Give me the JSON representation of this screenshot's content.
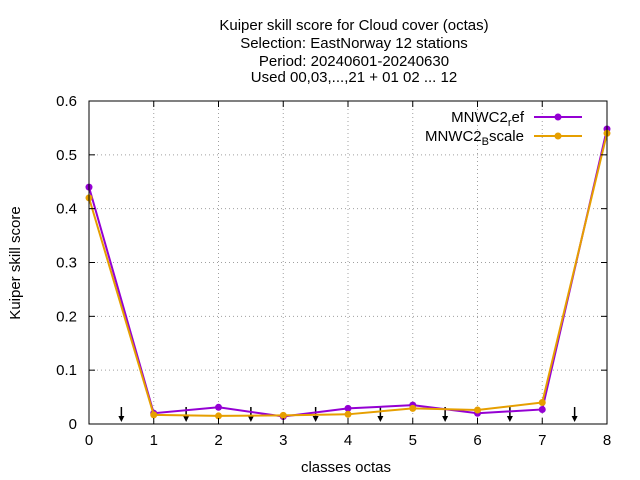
{
  "chart_data": {
    "type": "line",
    "title_lines": [
      "Kuiper skill score  for Cloud cover (octas)",
      "Selection: EastNorway     12 stations",
      "Period: 20240601-20240630",
      "Used 00,03,...,21 + 01 02 ... 12"
    ],
    "xlabel": "classes octas",
    "ylabel": "Kuiper skill score",
    "xlim": [
      0,
      8
    ],
    "ylim": [
      0,
      0.6
    ],
    "xticks": [
      "0",
      "1",
      "2",
      "3",
      "4",
      "5",
      "6",
      "7",
      "8"
    ],
    "yticks": [
      "0",
      "0.1",
      "0.2",
      "0.3",
      "0.4",
      "0.5",
      "0.6"
    ],
    "grid": true,
    "legend_position": "top-right",
    "x": [
      0,
      1,
      2,
      3,
      4,
      5,
      6,
      7,
      8
    ],
    "series": [
      {
        "name": "MNWC2_ref",
        "name_main": "MNWC2",
        "name_sub": "r",
        "name_rest": "ef",
        "color": "#9400d3",
        "values": [
          0.44,
          0.02,
          0.031,
          0.014,
          0.029,
          0.035,
          0.02,
          0.027,
          0.548
        ]
      },
      {
        "name": "MNWC2_Bscale",
        "name_main": "MNWC2",
        "name_sub": "B",
        "name_rest": "scale",
        "color": "#e69f00",
        "values": [
          0.42,
          0.017,
          0.015,
          0.016,
          0.018,
          0.029,
          0.026,
          0.04,
          0.54
        ]
      }
    ],
    "arrow_x": [
      0.5,
      1.5,
      2.5,
      3.5,
      4.5,
      5.5,
      6.5,
      7.5
    ]
  }
}
